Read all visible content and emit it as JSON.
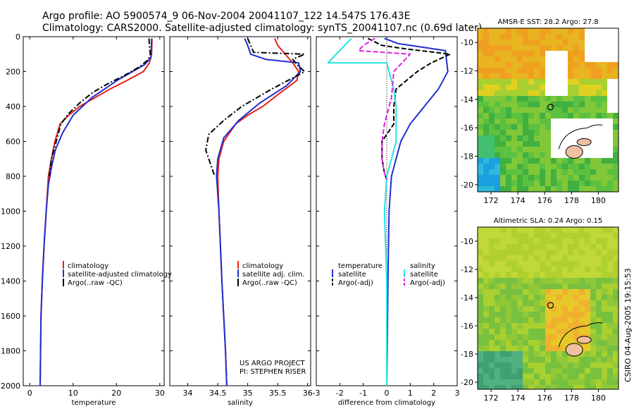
{
  "header": {
    "line1": "Argo profile: AO 5900574_9 06-Nov-2004 20041107_122 14.547S 176.43E",
    "line2": "Climatology: CARS2000. Satellite-adjusted climatology: synTS_20041107.nc (0.69d later)"
  },
  "side_text": "CSIRO 04-Aug-2005 19:15:53",
  "colors": {
    "red": "#e8201a",
    "blue": "#1f2fd0",
    "black": "#000000",
    "cyan": "#22e5e5",
    "magenta": "#e020e0"
  },
  "chart_data": [
    {
      "type": "line",
      "xlabel": "temperature",
      "ylabel": "",
      "xlim": [
        -1.5,
        31
      ],
      "ylim": [
        2000,
        0
      ],
      "xticks": [
        0,
        10,
        20,
        30
      ],
      "yticks": [
        0,
        200,
        400,
        600,
        800,
        1000,
        1200,
        1400,
        1600,
        1800,
        2000
      ],
      "legend": [
        "climatology",
        "satellite-adjusted climatology",
        "Argo(..raw -QC)"
      ],
      "series": [
        {
          "name": "climatology",
          "color": "red",
          "dash": "solid",
          "x": [
            28.2,
            28.1,
            27.6,
            26.2,
            22.5,
            18.5,
            15.0,
            11.5,
            9.0,
            7.0,
            5.8,
            5.0,
            4.3,
            3.8,
            3.3,
            2.9,
            2.6,
            2.4
          ],
          "y": [
            10,
            100,
            150,
            200,
            250,
            300,
            350,
            400,
            450,
            500,
            600,
            700,
            800,
            1000,
            1200,
            1400,
            1600,
            2000
          ]
        },
        {
          "name": "satellite-adjusted climatology",
          "color": "blue",
          "dash": "solid",
          "x": [
            28.1,
            28.0,
            26.5,
            20.2,
            14.3,
            10.0,
            7.6,
            5.9,
            5.0,
            4.3,
            3.8,
            3.3,
            2.9,
            2.6,
            2.4
          ],
          "y": [
            10,
            120,
            160,
            250,
            350,
            450,
            550,
            650,
            750,
            850,
            1000,
            1200,
            1400,
            1600,
            2000
          ]
        },
        {
          "name": "Argo(..raw -QC)",
          "color": "black",
          "dash": "dashdot",
          "x": [
            27.5,
            27.6,
            27.8,
            27.4,
            25.5,
            22.0,
            18.0,
            14.5,
            11.5,
            9.0,
            7.2,
            6.1,
            5.0,
            4.5
          ],
          "y": [
            10,
            50,
            100,
            130,
            170,
            220,
            270,
            320,
            380,
            440,
            500,
            600,
            700,
            800
          ]
        }
      ]
    },
    {
      "type": "line",
      "xlabel": "salinity",
      "xlim": [
        33.7,
        36.05
      ],
      "ylim": [
        2000,
        0
      ],
      "xticks": [
        34,
        34.5,
        35,
        35.5,
        36
      ],
      "legend": [
        "climatology",
        "satellite adj. clim.",
        "Argo(..raw -QC)"
      ],
      "annotation": [
        "US ARGO PROJECT",
        "PI: STEPHEN RISER"
      ],
      "series": [
        {
          "name": "climatology",
          "color": "red",
          "dash": "solid",
          "x": [
            35.45,
            35.5,
            35.75,
            35.85,
            35.82,
            35.55,
            35.25,
            35.0,
            34.8,
            34.6,
            34.52,
            34.5,
            34.52,
            34.57,
            34.63,
            34.65
          ],
          "y": [
            10,
            50,
            150,
            200,
            250,
            320,
            400,
            450,
            500,
            600,
            700,
            800,
            1000,
            1400,
            1800,
            2000
          ]
        },
        {
          "name": "satellite adj. clim.",
          "color": "blue",
          "dash": "solid",
          "x": [
            34.95,
            35.0,
            35.05,
            35.3,
            35.85,
            35.88,
            35.65,
            35.2,
            34.85,
            34.6,
            34.5,
            34.48,
            34.52,
            34.57,
            34.63,
            34.65
          ],
          "y": [
            10,
            50,
            100,
            130,
            150,
            200,
            280,
            380,
            480,
            580,
            700,
            800,
            1000,
            1400,
            1800,
            2000
          ]
        },
        {
          "name": "Argo(..raw -QC)",
          "color": "black",
          "dash": "dashdot",
          "x": [
            35.0,
            35.1,
            35.95,
            35.75,
            35.85,
            35.95,
            35.4,
            34.9,
            34.6,
            34.35,
            34.3,
            34.4,
            34.45
          ],
          "y": [
            10,
            90,
            100,
            130,
            170,
            200,
            300,
            400,
            480,
            560,
            650,
            750,
            800
          ]
        }
      ]
    },
    {
      "type": "line",
      "xlabel": "difference from climatology",
      "xlim": [
        -3,
        3
      ],
      "ylim": [
        2000,
        0
      ],
      "xticks": [
        -3,
        -2,
        -1,
        0,
        1,
        2,
        3
      ],
      "legend_left": [
        "temperature",
        "satellite",
        "Argo(-adj)"
      ],
      "legend_right": [
        "salinity",
        "satellite",
        "Argo(-adj)"
      ],
      "series": [
        {
          "name": "temperature satellite",
          "color": "blue",
          "dash": "solid",
          "x": [
            -0.1,
            0.5,
            2.5,
            2.6,
            2.2,
            1.6,
            1.0,
            0.6,
            0.4,
            0.2,
            0.1,
            0.05,
            0.02,
            0.0
          ],
          "y": [
            10,
            40,
            80,
            200,
            300,
            400,
            500,
            600,
            700,
            800,
            1000,
            1400,
            1800,
            2000
          ]
        },
        {
          "name": "temperature Argo(-adj)",
          "color": "black",
          "dash": "dashed",
          "x": [
            -0.8,
            -0.2,
            0.8,
            2.7,
            1.9,
            1.3,
            0.4,
            0.3,
            0.3,
            -0.2,
            -0.2,
            -0.1,
            0.0
          ],
          "y": [
            10,
            50,
            70,
            100,
            150,
            200,
            300,
            400,
            500,
            600,
            700,
            780,
            820
          ]
        },
        {
          "name": "salinity satellite",
          "color": "cyan",
          "dash": "solid",
          "x": [
            -1.5,
            -1.8,
            -2.5,
            0.0,
            0.3,
            0.4,
            0.4,
            0.2,
            0.0,
            -0.1,
            0.0,
            0.0
          ],
          "y": [
            10,
            50,
            150,
            150,
            300,
            400,
            600,
            700,
            800,
            1000,
            1400,
            2000
          ]
        },
        {
          "name": "salinity Argo(-adj)",
          "color": "magenta",
          "dash": "dashed",
          "x": [
            -0.5,
            -1.0,
            -1.2,
            1.0,
            0.3,
            0.2,
            -0.1,
            -0.2,
            -0.2,
            -0.1,
            0.0
          ],
          "y": [
            10,
            50,
            80,
            100,
            200,
            350,
            500,
            600,
            700,
            780,
            820
          ]
        }
      ]
    },
    {
      "type": "heatmap",
      "title": "AMSR-E SST: 28.2 Argo: 27.8",
      "xlim": [
        171,
        181.5
      ],
      "ylim": [
        -20.5,
        -9
      ],
      "xticks": [
        172,
        174,
        176,
        178,
        180
      ],
      "yticks": [
        -10,
        -12,
        -14,
        -16,
        -18,
        -20
      ],
      "marker": {
        "lon": 176.43,
        "lat": -14.547
      }
    },
    {
      "type": "heatmap",
      "title": "Altimetric SLA: 0.24 Argo: 0.15",
      "xlim": [
        171,
        181.5
      ],
      "ylim": [
        -20.5,
        -9
      ],
      "xticks": [
        172,
        174,
        176,
        178,
        180
      ],
      "yticks": [
        -10,
        -12,
        -14,
        -16,
        -18,
        -20
      ],
      "marker": {
        "lon": 176.43,
        "lat": -14.547
      }
    }
  ]
}
